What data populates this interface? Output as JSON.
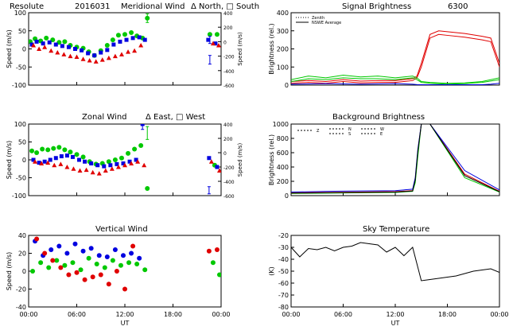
{
  "header": {
    "station": "Resolute",
    "date": "2016031",
    "title": "Meridional Wind",
    "legend": "Δ North, □ South"
  },
  "chart_data": [
    {
      "id": "meridional",
      "type": "scatter",
      "title": "Meridional Wind",
      "ylabel": "Speed (m/s)",
      "ylabel_right": "Speed (m/s)",
      "ylim": [
        -100,
        100
      ],
      "yticks": [
        "100",
        "50",
        "0",
        "-50",
        "-100"
      ],
      "yticks_right": [
        "400",
        "200",
        "0",
        "-200",
        "-400",
        "-600"
      ],
      "xlim": [
        0,
        24
      ],
      "series": [
        {
          "color": "#00c800",
          "marker": "circle",
          "x": [
            0.2,
            0.8,
            1.5,
            2.2,
            3,
            3.8,
            4.5,
            5.2,
            6,
            6.8,
            7.5,
            8.2,
            9,
            9.8,
            10.5,
            11.2,
            12,
            12.8,
            13.5,
            14.2,
            14.8,
            22.6,
            23.5
          ],
          "y": [
            20,
            28,
            22,
            30,
            25,
            18,
            20,
            10,
            5,
            2,
            -8,
            -18,
            -5,
            10,
            25,
            38,
            40,
            45,
            36,
            30,
            85,
            40,
            40
          ]
        },
        {
          "color": "#0000e0",
          "marker": "square",
          "x": [
            0.4,
            1,
            1.8,
            2.6,
            3.4,
            4.2,
            5,
            5.8,
            6.6,
            7.4,
            8.2,
            9,
            9.8,
            10.6,
            11.4,
            12.2,
            13,
            13.8,
            14.5,
            22.4,
            23.3
          ],
          "y": [
            12,
            20,
            15,
            18,
            12,
            8,
            5,
            0,
            -4,
            -12,
            -18,
            -10,
            -3,
            12,
            20,
            25,
            30,
            32,
            25,
            25,
            15
          ]
        },
        {
          "color": "#e00000",
          "marker": "triangle",
          "x": [
            0.6,
            1.3,
            2,
            2.8,
            3.6,
            4.4,
            5.2,
            6,
            6.8,
            7.6,
            8.4,
            9.2,
            10,
            10.8,
            11.6,
            12.4,
            13.2,
            14,
            23,
            23.7
          ],
          "y": [
            10,
            0,
            5,
            -5,
            -10,
            -15,
            -20,
            -22,
            -28,
            -32,
            -35,
            -30,
            -25,
            -20,
            -15,
            -8,
            -5,
            10,
            15,
            10
          ]
        }
      ],
      "errorbars": [
        {
          "x": 14.8,
          "y": 85,
          "err": 12,
          "color": "#00c800"
        },
        {
          "x": 22.6,
          "y": 25,
          "err": 10,
          "color": "#0000e0"
        },
        {
          "x": 22.6,
          "y": -30,
          "err": 12,
          "color": "#0000e0"
        }
      ]
    },
    {
      "id": "zonal",
      "type": "scatter",
      "title": "Zonal Wind",
      "legend": "Δ East, □ West",
      "ylabel": "Speed (m/s)",
      "ylabel_right": "Speed (m/s)",
      "ylim": [
        -100,
        100
      ],
      "yticks": [
        "100",
        "50",
        "0",
        "-50",
        "-100"
      ],
      "yticks_right": [
        "400",
        "200",
        "0",
        "-200",
        "-400",
        "-600"
      ],
      "xlim": [
        0,
        24
      ],
      "series": [
        {
          "color": "#00c800",
          "marker": "circle",
          "x": [
            0.4,
            1,
            1.7,
            2.4,
            3.1,
            3.8,
            4.5,
            5.2,
            6,
            6.8,
            7.6,
            8.4,
            9.2,
            10,
            10.8,
            11.6,
            12.4,
            13.2,
            14,
            14.8,
            23.2
          ],
          "y": [
            25,
            20,
            30,
            28,
            32,
            35,
            28,
            22,
            15,
            8,
            -5,
            -12,
            -10,
            -5,
            0,
            5,
            18,
            30,
            40,
            -80,
            -15
          ]
        },
        {
          "color": "#0000e0",
          "marker": "square",
          "x": [
            0.6,
            1.3,
            2,
            2.7,
            3.4,
            4.1,
            4.8,
            5.5,
            6.3,
            7,
            7.8,
            8.6,
            9.4,
            10.2,
            11,
            11.8,
            12.6,
            13.4,
            14.2,
            22.5,
            23.5
          ],
          "y": [
            0,
            -8,
            -5,
            0,
            5,
            10,
            12,
            8,
            0,
            -5,
            -10,
            -15,
            -18,
            -15,
            -12,
            -10,
            -5,
            0,
            100,
            5,
            -20
          ]
        },
        {
          "color": "#e00000",
          "marker": "triangle",
          "x": [
            0.8,
            1.6,
            2.4,
            3.2,
            4,
            4.8,
            5.6,
            6.4,
            7.2,
            8,
            8.8,
            9.6,
            10.4,
            11.2,
            12,
            12.8,
            13.6,
            14.4,
            22.8,
            23.8
          ],
          "y": [
            -5,
            -10,
            -8,
            -15,
            -12,
            -20,
            -25,
            -30,
            -28,
            -35,
            -38,
            -30,
            -25,
            -20,
            -15,
            -10,
            -5,
            -15,
            -5,
            -30
          ]
        }
      ],
      "errorbars": [
        {
          "x": 14.8,
          "y": 75,
          "err": 18,
          "color": "#00c800"
        },
        {
          "x": 14.2,
          "y": 100,
          "err": 15,
          "color": "#0000e0"
        },
        {
          "x": 22.5,
          "y": -85,
          "err": 10,
          "color": "#0000e0"
        }
      ]
    },
    {
      "id": "vertical",
      "type": "scatter",
      "title": "Vertical Wind",
      "ylabel": "Speed (m/s)",
      "xlabel": "UT",
      "ylim": [
        -50,
        50
      ],
      "yticks": [
        "40",
        "20",
        "0",
        "-20",
        "-40"
      ],
      "xlim": [
        0,
        24
      ],
      "xticks": [
        "00:00",
        "06:00",
        "12:00",
        "18:00",
        "00:00"
      ],
      "series": [
        {
          "color": "#00c800",
          "marker": "circle",
          "x": [
            0.5,
            1.5,
            2.5,
            3.5,
            4.5,
            5.5,
            6.5,
            7.5,
            8.5,
            9.5,
            10.5,
            11.5,
            12.5,
            13.5,
            14.5,
            23,
            23.8
          ],
          "y": [
            0,
            12,
            5,
            15,
            8,
            12,
            2,
            18,
            10,
            5,
            15,
            8,
            12,
            10,
            2,
            12,
            -5
          ]
        },
        {
          "color": "#0000e0",
          "marker": "circle",
          "x": [
            0.8,
            1.8,
            2.8,
            3.8,
            4.8,
            5.8,
            6.8,
            7.8,
            8.8,
            9.8,
            10.8,
            11.8,
            12.8,
            13.8
          ],
          "y": [
            42,
            22,
            30,
            35,
            25,
            38,
            28,
            32,
            22,
            20,
            30,
            22,
            25,
            18
          ]
        },
        {
          "color": "#e00000",
          "marker": "circle",
          "x": [
            1,
            2,
            3,
            4,
            5,
            6,
            7,
            8,
            9,
            10,
            11,
            12,
            13,
            22.5,
            23.5
          ],
          "y": [
            45,
            25,
            15,
            5,
            -5,
            -2,
            -12,
            -8,
            -5,
            -18,
            0,
            -25,
            35,
            28,
            30
          ]
        }
      ]
    },
    {
      "id": "signal",
      "type": "line",
      "title": "Signal Brightness",
      "wavelength": "6300",
      "ylabel": "Brightness (rel.)",
      "ylim": [
        0,
        400
      ],
      "yticks": [
        "400",
        "300",
        "200",
        "100",
        "0"
      ],
      "xlim": [
        0,
        24
      ],
      "legend": [
        {
          "name": "Zenith",
          "style": "dotted"
        },
        {
          "name": "NSWE Average",
          "style": "solid"
        }
      ],
      "series": [
        {
          "color": "#e00000",
          "x": [
            0,
            2,
            4,
            6,
            8,
            10,
            12,
            13,
            14,
            14.5,
            15,
            16,
            17,
            18,
            20,
            22,
            23,
            24
          ],
          "y": [
            20,
            25,
            20,
            30,
            22,
            25,
            25,
            30,
            35,
            50,
            120,
            280,
            300,
            295,
            285,
            270,
            260,
            120
          ]
        },
        {
          "color": "#e00000",
          "x": [
            0,
            2,
            4,
            6,
            8,
            10,
            12,
            13,
            14,
            14.5,
            15,
            16,
            17,
            18,
            20,
            22,
            23,
            24
          ],
          "y": [
            10,
            15,
            10,
            20,
            12,
            15,
            15,
            20,
            25,
            40,
            100,
            260,
            280,
            275,
            265,
            250,
            240,
            100
          ]
        },
        {
          "color": "#00c800",
          "x": [
            0,
            2,
            4,
            6,
            8,
            10,
            12,
            13,
            14,
            14.5,
            15,
            16,
            18,
            20,
            22,
            24
          ],
          "y": [
            30,
            50,
            40,
            55,
            45,
            50,
            40,
            45,
            50,
            40,
            20,
            15,
            10,
            12,
            20,
            40
          ]
        },
        {
          "color": "#00c800",
          "x": [
            0,
            2,
            4,
            6,
            8,
            10,
            12,
            13,
            14,
            14.5,
            15,
            16,
            18,
            20,
            22,
            24
          ],
          "y": [
            20,
            35,
            30,
            40,
            35,
            35,
            30,
            35,
            40,
            30,
            15,
            10,
            5,
            8,
            15,
            30
          ]
        },
        {
          "color": "#0000e0",
          "x": [
            0,
            4,
            8,
            12,
            14,
            14.5,
            15,
            18,
            22,
            23,
            24
          ],
          "y": [
            5,
            8,
            5,
            8,
            5,
            3,
            2,
            2,
            2,
            5,
            10
          ]
        }
      ]
    },
    {
      "id": "background",
      "type": "line",
      "title": "Background Brightness",
      "ylabel": "Brightness (rel.)",
      "ylim": [
        0,
        1000
      ],
      "yticks": [
        "1000",
        "800",
        "600",
        "400",
        "200",
        "0"
      ],
      "xlim": [
        0,
        24
      ],
      "legend": [
        "Z",
        "N",
        "S",
        "W",
        "E"
      ],
      "series": [
        {
          "color": "#e00000",
          "x": [
            0,
            4,
            8,
            12,
            14,
            14.3,
            14.6,
            15,
            16,
            20,
            24
          ],
          "y": [
            40,
            45,
            50,
            55,
            70,
            200,
            600,
            1000,
            1000,
            300,
            60
          ]
        },
        {
          "color": "#00c800",
          "x": [
            0,
            4,
            8,
            12,
            14,
            14.3,
            14.6,
            15,
            16,
            20,
            24
          ],
          "y": [
            30,
            35,
            40,
            45,
            60,
            180,
            550,
            1000,
            1000,
            250,
            50
          ]
        },
        {
          "color": "#0000e0",
          "x": [
            0,
            4,
            8,
            12,
            14,
            14.3,
            14.6,
            15,
            16,
            20,
            24
          ],
          "y": [
            50,
            60,
            65,
            70,
            90,
            250,
            650,
            1000,
            1000,
            350,
            80
          ]
        },
        {
          "color": "#000000",
          "x": [
            0,
            4,
            8,
            12,
            14,
            14.3,
            14.6,
            15,
            16,
            20,
            24
          ],
          "y": [
            35,
            40,
            45,
            50,
            65,
            220,
            620,
            1000,
            1000,
            280,
            55
          ]
        }
      ]
    },
    {
      "id": "sky",
      "type": "line",
      "title": "Sky Temperature",
      "ylabel": "(K)",
      "xlabel": "UT",
      "ylim": [
        -80,
        -20
      ],
      "yticks": [
        "-20",
        "-30",
        "-40",
        "-50",
        "-60",
        "-70",
        "-80"
      ],
      "xlim": [
        0,
        24
      ],
      "xticks": [
        "00:00",
        "06:00",
        "12:00",
        "18:00",
        "00:00"
      ],
      "series": [
        {
          "color": "#000000",
          "x": [
            0,
            1,
            2,
            3,
            4,
            5,
            6,
            7,
            8,
            9,
            10,
            11,
            12,
            13,
            14,
            15,
            16,
            17,
            18,
            19,
            20,
            21,
            22,
            23,
            24
          ],
          "y": [
            -30,
            -38,
            -31,
            -32,
            -30,
            -33,
            -30,
            -29,
            -26,
            -27,
            -28,
            -34,
            -30,
            -37,
            -30,
            -58,
            -57,
            -56,
            -55,
            -54,
            -52,
            -50,
            -49,
            -48,
            -51
          ]
        }
      ]
    }
  ]
}
